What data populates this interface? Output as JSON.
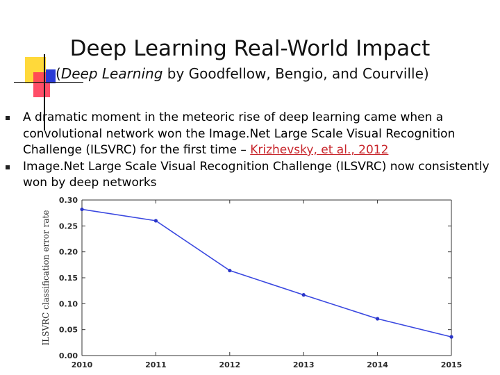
{
  "slide": {
    "title": "Deep Learning Real-World Impact",
    "subtitle_open": "(",
    "subtitle_book": "Deep Learning",
    "subtitle_rest": " by Goodfellow, Bengio, and Courville)"
  },
  "bullets": [
    {
      "text": "A dramatic moment in the meteoric rise of deep learning came when a convolutional network won the Image.Net Large Scale Visual Recognition Challenge (ILSVRC) for the first time – ",
      "citation": "Krizhevsky, et al., 2012"
    },
    {
      "text": "Image.Net Large Scale Visual Recognition Challenge (ILSVRC) now consistently won by deep networks"
    }
  ],
  "colors": {
    "line": "#3a48e0",
    "marker": "#2a35c8",
    "citation": "#c8262c"
  },
  "chart_data": {
    "type": "line",
    "title": "",
    "xlabel": "",
    "ylabel": "ILSVRC classification error rate",
    "x": [
      2010,
      2011,
      2012,
      2013,
      2014,
      2015
    ],
    "values": [
      0.282,
      0.26,
      0.164,
      0.117,
      0.071,
      0.036
    ],
    "xlim": [
      2010,
      2015
    ],
    "ylim": [
      0.0,
      0.3
    ],
    "yticks": [
      "0.00",
      "0.05",
      "0.10",
      "0.15",
      "0.20",
      "0.25",
      "0.30"
    ],
    "xticks": [
      "2010",
      "2011",
      "2012",
      "2013",
      "2014",
      "2015"
    ],
    "grid": false
  }
}
